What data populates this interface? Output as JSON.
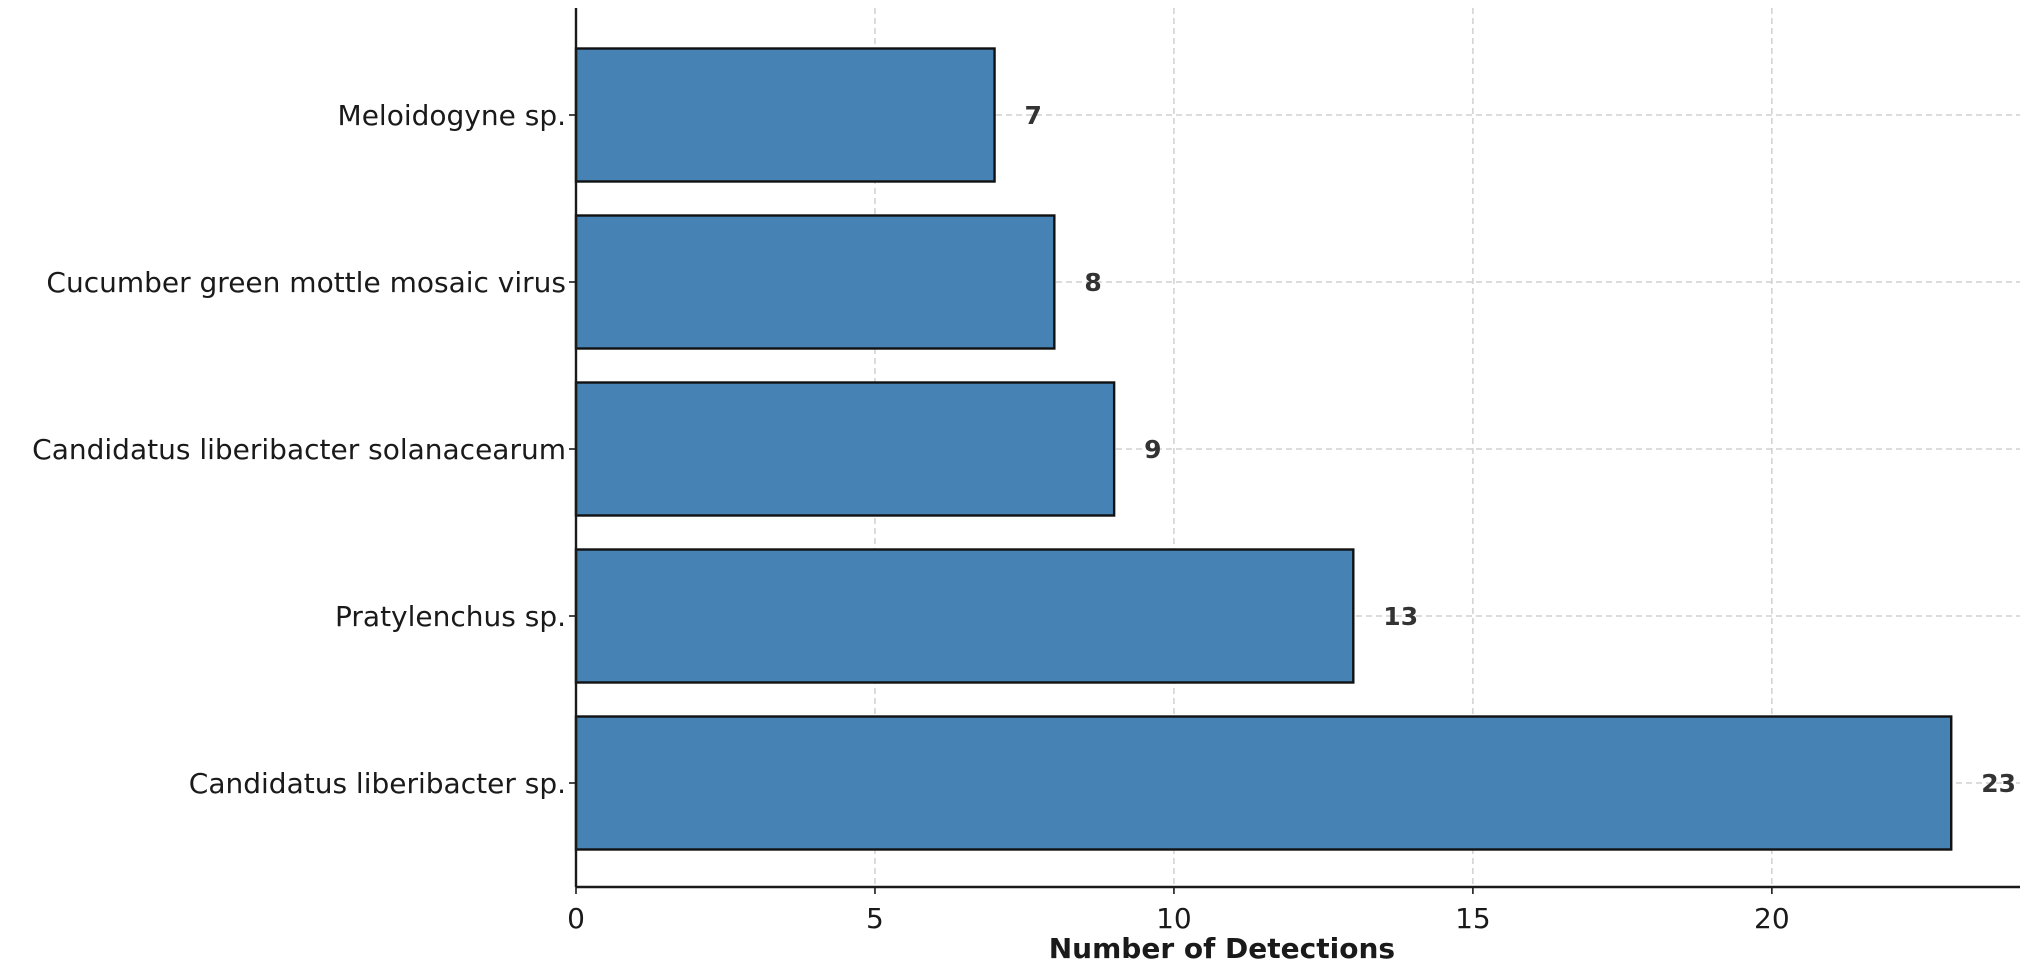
{
  "chart_data": {
    "type": "bar",
    "orientation": "horizontal",
    "categories": [
      "Meloidogyne sp.",
      "Cucumber green mottle mosaic virus",
      "Candidatus liberibacter solanacearum",
      "Pratylenchus sp.",
      "Candidatus liberibacter sp."
    ],
    "values": [
      7,
      8,
      9,
      13,
      23
    ],
    "value_labels": [
      "7",
      "8",
      "9",
      "13",
      "23"
    ],
    "xlabel": "Number of Detections",
    "ylabel": "",
    "xlim": [
      0,
      24.15
    ],
    "x_ticks": [
      0,
      5,
      10,
      15,
      20
    ],
    "x_tick_labels": [
      "0",
      "5",
      "10",
      "15",
      "20"
    ],
    "grid": true,
    "bar_color": "#4682b4",
    "bar_edge_color": "#111111"
  }
}
